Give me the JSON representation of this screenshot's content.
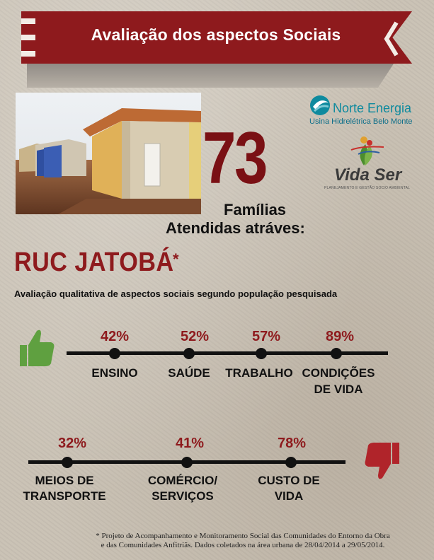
{
  "banner": {
    "title": "Avaliação dos aspectos Sociais"
  },
  "logos": {
    "norte_energia": {
      "name": "Norte Energia",
      "subtitle": "Usina Hidrelétrica Belo Monte"
    },
    "vida_ser": {
      "name": "Vida Ser",
      "subtitle": "PLANEJAMENTO E GESTÃO SOCIO AMBIENTAL"
    }
  },
  "families": {
    "count": "73",
    "label_line1": "Famílias",
    "label_line2": "Atendidas atráves:"
  },
  "ruc": {
    "title": "RUC JATOBÁ",
    "marker": "*"
  },
  "subtitle": "Avaliação qualitativa de aspectos sociais segundo população pesquisada",
  "positive": {
    "icon": "thumbs-up-icon",
    "items": [
      {
        "percent": "42%",
        "label": "ENSINO"
      },
      {
        "percent": "52%",
        "label": "SAÚDE"
      },
      {
        "percent": "57%",
        "label": "TRABALHO"
      },
      {
        "percent": "89%",
        "label_line1": "CONDIÇÕES",
        "label_line2": "DE VIDA"
      }
    ]
  },
  "negative": {
    "icon": "thumbs-down-icon",
    "items": [
      {
        "percent": "32%",
        "label_line1": "MEIOS DE",
        "label_line2": "TRANSPORTE"
      },
      {
        "percent": "41%",
        "label_line1": "COMÉRCIO/",
        "label_line2": "SERVIÇOS"
      },
      {
        "percent": "78%",
        "label_line1": "CUSTO DE",
        "label_line2": "VIDA"
      }
    ]
  },
  "footnote": {
    "line1": "* Projeto de Acompanhamento e Monitoramento Social das Comunidades do Entorno da Obra",
    "line2": "e das Comunidades Anfitriãs. Dados coletados na área urbana de 28/04/2014 a 29/05/2014."
  },
  "colors": {
    "brand_red": "#8e1a1d",
    "thumbs_up": "#5fa040",
    "thumbs_down": "#b0242a",
    "norte_teal": "#0e8a9e"
  }
}
